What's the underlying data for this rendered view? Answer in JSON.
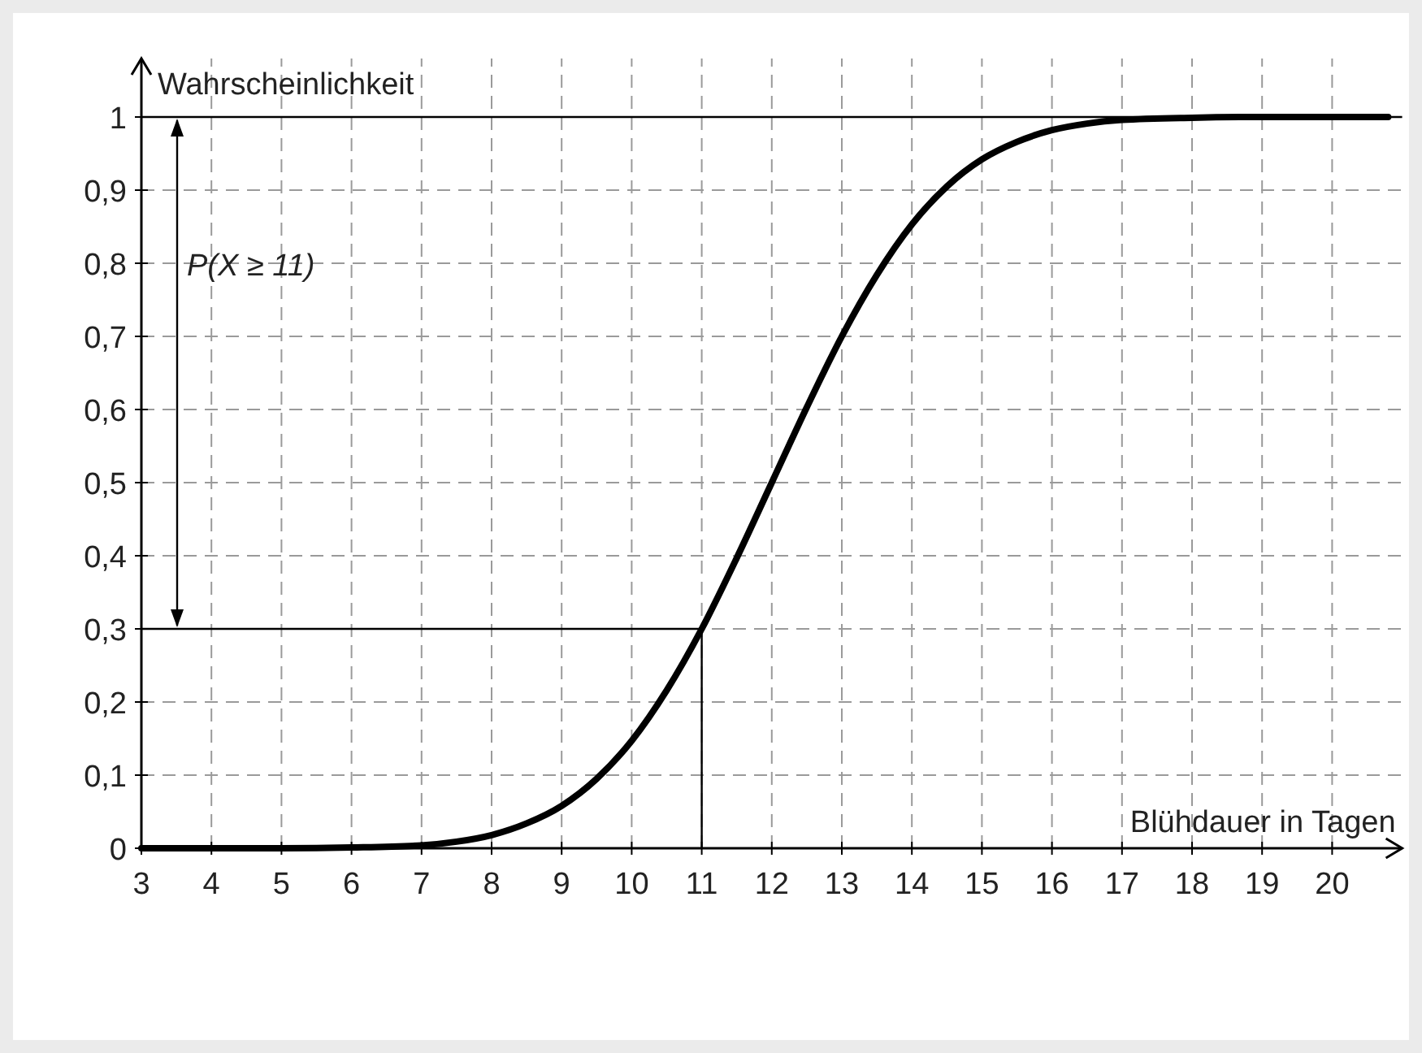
{
  "chart_data": {
    "type": "line",
    "xlabel": "Blühdauer in Tagen",
    "ylabel": "Wahrscheinlichkeit",
    "x": [
      3,
      4,
      5,
      6,
      7,
      7.5,
      8,
      8.5,
      9,
      9.5,
      10,
      10.5,
      11,
      11.5,
      12,
      12.5,
      13,
      13.5,
      14,
      14.5,
      15,
      15.5,
      16,
      16.5,
      17,
      18,
      19,
      20.8
    ],
    "series": [
      {
        "color": "#000000",
        "values": [
          0,
          0,
          0,
          0.001,
          0.004,
          0.009,
          0.018,
          0.034,
          0.058,
          0.095,
          0.147,
          0.216,
          0.3,
          0.397,
          0.5,
          0.603,
          0.7,
          0.784,
          0.853,
          0.905,
          0.942,
          0.966,
          0.982,
          0.991,
          0.996,
          0.999,
          1,
          1
        ]
      }
    ],
    "xlim": [
      3,
      21
    ],
    "ylim": [
      0,
      1.08
    ],
    "xticks": [
      3,
      4,
      5,
      6,
      7,
      8,
      9,
      10,
      11,
      12,
      13,
      14,
      15,
      16,
      17,
      18,
      19,
      20
    ],
    "yticks": [
      0,
      {
        "value": 0.1,
        "label": "0,1"
      },
      {
        "value": 0.2,
        "label": "0,2"
      },
      {
        "value": 0.3,
        "label": "0,3"
      },
      {
        "value": 0.4,
        "label": "0,4"
      },
      {
        "value": 0.5,
        "label": "0,5"
      },
      {
        "value": 0.6,
        "label": "0,6"
      },
      {
        "value": 0.7,
        "label": "0,7"
      },
      {
        "value": 0.8,
        "label": "0,8"
      },
      {
        "value": 0.9,
        "label": "0,9"
      },
      1
    ],
    "grid": true,
    "line_style": "solid",
    "marker": "none",
    "ref_lines": [
      {
        "axis": "y",
        "value": 1,
        "color": "#000000"
      },
      {
        "axis": "y",
        "value": 0.3,
        "color": "#000000"
      },
      {
        "axis": "x",
        "value": 11,
        "color": "#000000"
      }
    ],
    "annotations": [
      "P(X ≥ 11)"
    ]
  }
}
